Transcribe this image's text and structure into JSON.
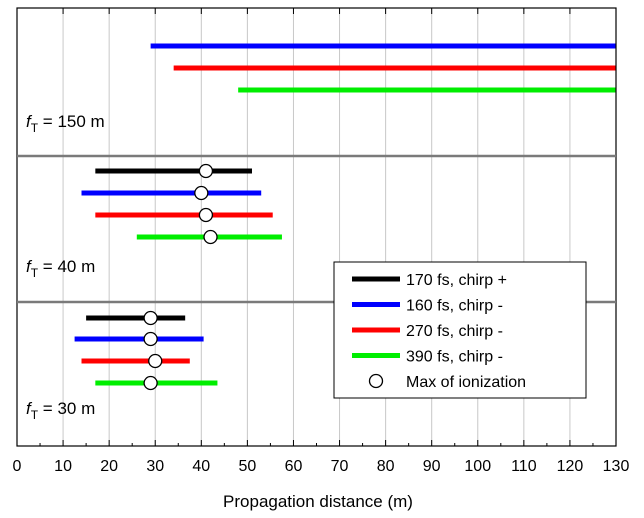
{
  "chart_data": {
    "type": "line",
    "xlabel": "Propagation distance (m)",
    "xlim": [
      0,
      130
    ],
    "x_ticks": [
      0,
      10,
      20,
      30,
      40,
      50,
      60,
      70,
      80,
      90,
      100,
      110,
      120,
      130
    ],
    "grid": true,
    "legend_position": "lower-right",
    "legend": [
      {
        "name": "170 fs, chirp +",
        "color": "#000000",
        "marker": "line"
      },
      {
        "name": "160 fs, chirp -",
        "color": "#0000ff",
        "marker": "line"
      },
      {
        "name": "270 fs, chirp -",
        "color": "#ff0000",
        "marker": "line"
      },
      {
        "name": "390 fs, chirp -",
        "color": "#00ee00",
        "marker": "line"
      },
      {
        "name": "Max of ionization",
        "color": "#ffffff",
        "marker": "circle"
      }
    ],
    "panels": [
      {
        "label_prefix": "f",
        "label_sub": "T",
        "label_suffix": " = 150 m",
        "series": [
          {
            "color": "#0000ff",
            "start": 29,
            "end": 130,
            "max": null
          },
          {
            "color": "#ff0000",
            "start": 34,
            "end": 130,
            "max": null
          },
          {
            "color": "#00ee00",
            "start": 48,
            "end": 130,
            "max": null
          }
        ]
      },
      {
        "label_prefix": "f",
        "label_sub": "T",
        "label_suffix": " = 40 m",
        "series": [
          {
            "color": "#000000",
            "start": 17,
            "end": 51,
            "max": 41
          },
          {
            "color": "#0000ff",
            "start": 14,
            "end": 53,
            "max": 40
          },
          {
            "color": "#ff0000",
            "start": 17,
            "end": 55.5,
            "max": 41
          },
          {
            "color": "#00ee00",
            "start": 26,
            "end": 57.5,
            "max": 42
          }
        ]
      },
      {
        "label_prefix": "f",
        "label_sub": "T",
        "label_suffix": " = 30 m",
        "series": [
          {
            "color": "#000000",
            "start": 15,
            "end": 36.5,
            "max": 29
          },
          {
            "color": "#0000ff",
            "start": 12.5,
            "end": 40.5,
            "max": 29
          },
          {
            "color": "#ff0000",
            "start": 14,
            "end": 37.5,
            "max": 30
          },
          {
            "color": "#00ee00",
            "start": 17,
            "end": 43.5,
            "max": 29
          }
        ]
      }
    ]
  }
}
